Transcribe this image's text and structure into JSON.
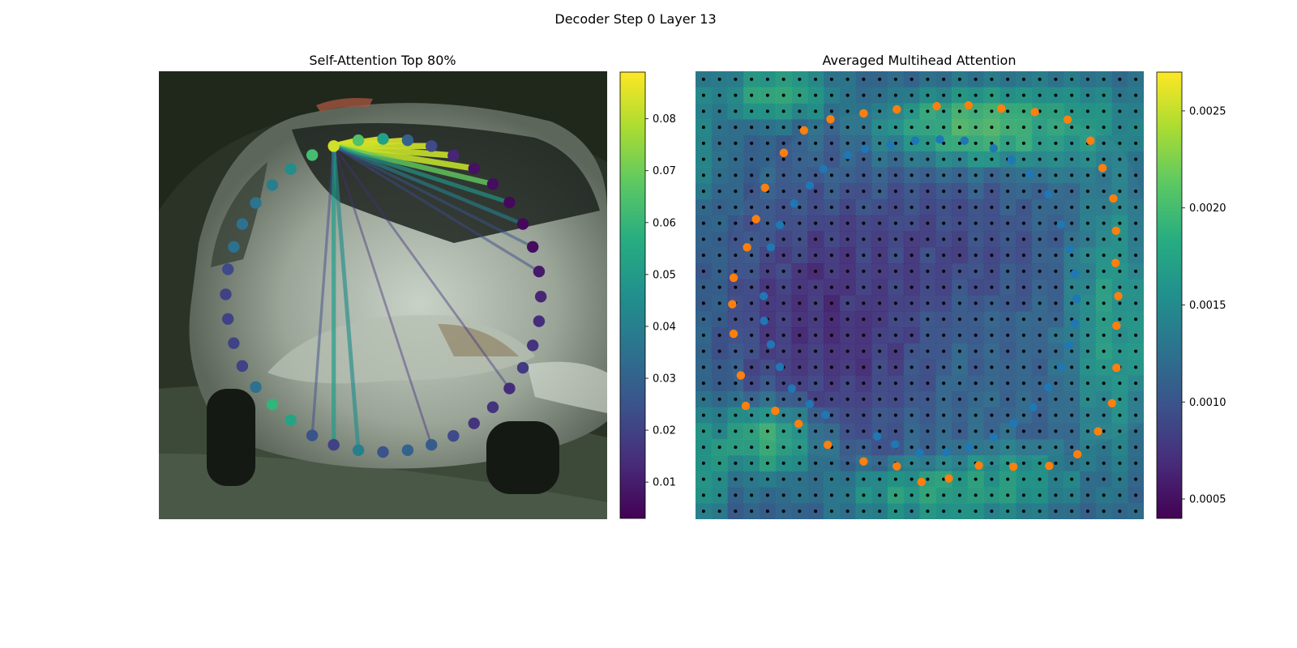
{
  "figure": {
    "suptitle": "Decoder Step 0 Layer 13"
  },
  "chart_data": [
    {
      "type": "scatter",
      "title": "Self-Attention Top 80%",
      "description_of_background": "photo of a silver car",
      "colormap": "viridis",
      "colorbar": {
        "min": 0.003,
        "max": 0.089,
        "ticks": [
          0.01,
          0.02,
          0.03,
          0.04,
          0.05,
          0.06,
          0.07,
          0.08
        ]
      },
      "query_point": {
        "index": 0,
        "value": 0.083
      },
      "points": [
        {
          "x": 0.39,
          "y": 0.167,
          "value": 0.083
        },
        {
          "x": 0.445,
          "y": 0.154,
          "value": 0.065
        },
        {
          "x": 0.5,
          "y": 0.151,
          "value": 0.052
        },
        {
          "x": 0.555,
          "y": 0.154,
          "value": 0.03
        },
        {
          "x": 0.608,
          "y": 0.167,
          "value": 0.022
        },
        {
          "x": 0.657,
          "y": 0.188,
          "value": 0.012
        },
        {
          "x": 0.703,
          "y": 0.217,
          "value": 0.007
        },
        {
          "x": 0.745,
          "y": 0.252,
          "value": 0.006
        },
        {
          "x": 0.782,
          "y": 0.293,
          "value": 0.005
        },
        {
          "x": 0.812,
          "y": 0.341,
          "value": 0.005
        },
        {
          "x": 0.834,
          "y": 0.392,
          "value": 0.006
        },
        {
          "x": 0.848,
          "y": 0.447,
          "value": 0.009
        },
        {
          "x": 0.852,
          "y": 0.503,
          "value": 0.012
        },
        {
          "x": 0.848,
          "y": 0.558,
          "value": 0.014
        },
        {
          "x": 0.834,
          "y": 0.612,
          "value": 0.016
        },
        {
          "x": 0.812,
          "y": 0.662,
          "value": 0.018
        },
        {
          "x": 0.782,
          "y": 0.708,
          "value": 0.014
        },
        {
          "x": 0.745,
          "y": 0.75,
          "value": 0.016
        },
        {
          "x": 0.703,
          "y": 0.786,
          "value": 0.016
        },
        {
          "x": 0.657,
          "y": 0.814,
          "value": 0.022
        },
        {
          "x": 0.608,
          "y": 0.834,
          "value": 0.028
        },
        {
          "x": 0.555,
          "y": 0.846,
          "value": 0.03
        },
        {
          "x": 0.5,
          "y": 0.85,
          "value": 0.025
        },
        {
          "x": 0.445,
          "y": 0.846,
          "value": 0.04
        },
        {
          "x": 0.39,
          "y": 0.834,
          "value": 0.02
        },
        {
          "x": 0.342,
          "y": 0.813,
          "value": 0.025
        },
        {
          "x": 0.294,
          "y": 0.779,
          "value": 0.053
        },
        {
          "x": 0.253,
          "y": 0.744,
          "value": 0.059
        },
        {
          "x": 0.216,
          "y": 0.705,
          "value": 0.035
        },
        {
          "x": 0.186,
          "y": 0.658,
          "value": 0.02
        },
        {
          "x": 0.167,
          "y": 0.607,
          "value": 0.02
        },
        {
          "x": 0.154,
          "y": 0.553,
          "value": 0.02
        },
        {
          "x": 0.149,
          "y": 0.498,
          "value": 0.02
        },
        {
          "x": 0.154,
          "y": 0.442,
          "value": 0.022
        },
        {
          "x": 0.167,
          "y": 0.392,
          "value": 0.035
        },
        {
          "x": 0.186,
          "y": 0.341,
          "value": 0.035
        },
        {
          "x": 0.216,
          "y": 0.294,
          "value": 0.036
        },
        {
          "x": 0.253,
          "y": 0.254,
          "value": 0.04
        },
        {
          "x": 0.294,
          "y": 0.218,
          "value": 0.045
        },
        {
          "x": 0.342,
          "y": 0.187,
          "value": 0.063
        }
      ],
      "edges": [
        {
          "to": 1,
          "value": 0.085
        },
        {
          "to": 2,
          "value": 0.085
        },
        {
          "to": 3,
          "value": 0.084
        },
        {
          "to": 4,
          "value": 0.083
        },
        {
          "to": 5,
          "value": 0.082
        },
        {
          "to": 6,
          "value": 0.081
        },
        {
          "to": 7,
          "value": 0.068
        },
        {
          "to": 8,
          "value": 0.048
        },
        {
          "to": 9,
          "value": 0.04
        },
        {
          "to": 10,
          "value": 0.025
        },
        {
          "to": 11,
          "value": 0.022
        },
        {
          "to": 16,
          "value": 0.015
        },
        {
          "to": 20,
          "value": 0.014
        },
        {
          "to": 23,
          "value": 0.045
        },
        {
          "to": 24,
          "value": 0.05
        },
        {
          "to": 25,
          "value": 0.022
        }
      ]
    },
    {
      "type": "heatmap",
      "title": "Averaged Multihead Attention",
      "colormap": "viridis",
      "grid": {
        "cols": 28,
        "rows": 28
      },
      "colorbar": {
        "min": 0.0004,
        "max": 0.0027,
        "ticks": [
          0.0005,
          0.001,
          0.0015,
          0.002,
          0.0025
        ]
      },
      "heat_blobs": [
        {
          "cx": 0.5,
          "cy": 0.5,
          "rx": 0.5,
          "ry": 0.5,
          "value": 0.0012
        },
        {
          "cx": 0.65,
          "cy": 0.12,
          "rx": 0.22,
          "ry": 0.08,
          "value": 0.0025
        },
        {
          "cx": 0.18,
          "cy": 0.05,
          "rx": 0.12,
          "ry": 0.06,
          "value": 0.0023
        },
        {
          "cx": 0.16,
          "cy": 0.82,
          "rx": 0.12,
          "ry": 0.08,
          "value": 0.0024
        },
        {
          "cx": 0.55,
          "cy": 0.94,
          "rx": 0.22,
          "ry": 0.06,
          "value": 0.0022
        },
        {
          "cx": 0.02,
          "cy": 0.9,
          "rx": 0.04,
          "ry": 0.12,
          "value": 0.0021
        },
        {
          "cx": 0.93,
          "cy": 0.55,
          "rx": 0.09,
          "ry": 0.3,
          "value": 0.002
        },
        {
          "cx": 0.85,
          "cy": 0.12,
          "rx": 0.14,
          "ry": 0.1,
          "value": 0.0019
        },
        {
          "cx": 0.3,
          "cy": 0.55,
          "rx": 0.2,
          "ry": 0.25,
          "value": 0.0005
        },
        {
          "cx": 0.55,
          "cy": 0.4,
          "rx": 0.2,
          "ry": 0.14,
          "value": 0.0008
        },
        {
          "cx": 0.02,
          "cy": 0.15,
          "rx": 0.04,
          "ry": 0.15,
          "value": 0.0017
        },
        {
          "cx": 0.7,
          "cy": 0.9,
          "rx": 0.15,
          "ry": 0.06,
          "value": 0.0019
        }
      ],
      "series": [
        {
          "name": "inner",
          "color": "#1f77b4",
          "points": [
            [
              0.435,
              0.165
            ],
            [
              0.49,
              0.155
            ],
            [
              0.545,
              0.152
            ],
            [
              0.6,
              0.155
            ],
            [
              0.665,
              0.172
            ],
            [
              0.705,
              0.198
            ],
            [
              0.745,
              0.23
            ],
            [
              0.787,
              0.275
            ],
            [
              0.815,
              0.342
            ],
            [
              0.835,
              0.397
            ],
            [
              0.846,
              0.452
            ],
            [
              0.85,
              0.508
            ],
            [
              0.846,
              0.563
            ],
            [
              0.833,
              0.612
            ],
            [
              0.815,
              0.66
            ],
            [
              0.787,
              0.706
            ],
            [
              0.753,
              0.75
            ],
            [
              0.71,
              0.786
            ],
            [
              0.665,
              0.817
            ],
            [
              0.61,
              0.84
            ],
            [
              0.56,
              0.85
            ],
            [
              0.5,
              0.852
            ],
            [
              0.445,
              0.833
            ],
            [
              0.405,
              0.815
            ],
            [
              0.29,
              0.767
            ],
            [
              0.255,
              0.743
            ],
            [
              0.215,
              0.708
            ],
            [
              0.188,
              0.66
            ],
            [
              0.168,
              0.61
            ],
            [
              0.153,
              0.557
            ],
            [
              0.152,
              0.502
            ],
            [
              0.168,
              0.393
            ],
            [
              0.188,
              0.343
            ],
            [
              0.22,
              0.295
            ],
            [
              0.255,
              0.255
            ],
            [
              0.285,
              0.218
            ],
            [
              0.34,
              0.187
            ],
            [
              0.378,
              0.173
            ]
          ]
        },
        {
          "name": "outer",
          "color": "#ff7f0e",
          "points": [
            [
              0.449,
              0.085
            ],
            [
              0.538,
              0.078
            ],
            [
              0.609,
              0.076
            ],
            [
              0.682,
              0.083
            ],
            [
              0.757,
              0.091
            ],
            [
              0.83,
              0.108
            ],
            [
              0.881,
              0.155
            ],
            [
              0.908,
              0.216
            ],
            [
              0.932,
              0.284
            ],
            [
              0.938,
              0.356
            ],
            [
              0.937,
              0.428
            ],
            [
              0.943,
              0.502
            ],
            [
              0.939,
              0.568
            ],
            [
              0.939,
              0.662
            ],
            [
              0.929,
              0.741
            ],
            [
              0.898,
              0.804
            ],
            [
              0.852,
              0.855
            ],
            [
              0.789,
              0.881
            ],
            [
              0.709,
              0.883
            ],
            [
              0.632,
              0.88
            ],
            [
              0.565,
              0.909
            ],
            [
              0.504,
              0.917
            ],
            [
              0.449,
              0.882
            ],
            [
              0.375,
              0.871
            ],
            [
              0.295,
              0.834
            ],
            [
              0.23,
              0.787
            ],
            [
              0.178,
              0.758
            ],
            [
              0.112,
              0.747
            ],
            [
              0.101,
              0.679
            ],
            [
              0.085,
              0.586
            ],
            [
              0.082,
              0.52
            ],
            [
              0.085,
              0.461
            ],
            [
              0.115,
              0.393
            ],
            [
              0.135,
              0.33
            ],
            [
              0.155,
              0.26
            ],
            [
              0.197,
              0.182
            ],
            [
              0.242,
              0.132
            ],
            [
              0.301,
              0.107
            ],
            [
              0.375,
              0.094
            ]
          ]
        }
      ]
    }
  ]
}
